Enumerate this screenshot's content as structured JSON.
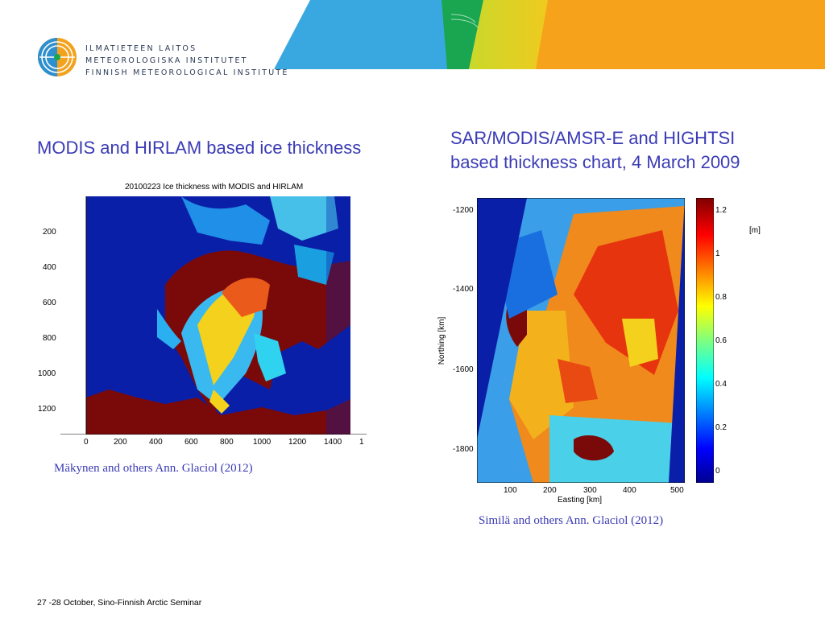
{
  "organization": {
    "name_finnish": "ILMATIETEEN LAITOS",
    "name_swedish": "METEOROLOGISKA INSTITUTET",
    "name_english": "FINNISH METEOROLOGICAL INSTITUTE"
  },
  "left_panel": {
    "title": "MODIS and HIRLAM based ice thickness",
    "citation": "Mäkynen and others Ann. Glaciol (2012)",
    "figure": {
      "title": "20100223  Ice thickness with MODIS and HIRLAM",
      "x_ticks": [
        "0",
        "200",
        "400",
        "600",
        "800",
        "1000",
        "1200",
        "1400",
        "1"
      ],
      "y_ticks": [
        "200",
        "400",
        "600",
        "800",
        "1000",
        "1200"
      ]
    }
  },
  "right_panel": {
    "title_line1": "SAR/MODIS/AMSR-E and HIGHTSI",
    "title_line2": "based thickness chart, 4 March 2009",
    "citation": "Similä and others Ann. Glaciol (2012)",
    "figure": {
      "xlabel": "Easting [km]",
      "ylabel": "Northing [km]",
      "x_ticks": [
        "100",
        "200",
        "300",
        "400",
        "500"
      ],
      "y_ticks": [
        "-1200",
        "-1400",
        "-1600",
        "-1800"
      ],
      "colorbar_ticks": [
        "1.2",
        "1",
        "0.8",
        "0.6",
        "0.4",
        "0.2",
        "0"
      ],
      "colorbar_unit": "[m]"
    }
  },
  "footer": {
    "text": "27 -28 October, Sino-Finnish Arctic Seminar"
  },
  "colors": {
    "title_blue": "#3b3bb5",
    "banner_blue": "#3aa8e0",
    "banner_green": "#1aa650",
    "banner_yellow": "#f2d21e",
    "banner_orange": "#f7a21b"
  }
}
